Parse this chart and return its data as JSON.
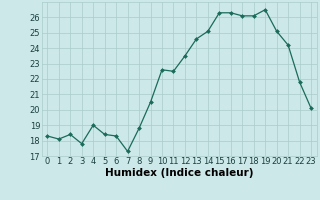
{
  "x": [
    0,
    1,
    2,
    3,
    4,
    5,
    6,
    7,
    8,
    9,
    10,
    11,
    12,
    13,
    14,
    15,
    16,
    17,
    18,
    19,
    20,
    21,
    22,
    23
  ],
  "y": [
    18.3,
    18.1,
    18.4,
    17.8,
    19.0,
    18.4,
    18.3,
    17.3,
    18.8,
    20.5,
    22.6,
    22.5,
    23.5,
    24.6,
    25.1,
    26.3,
    26.3,
    26.1,
    26.1,
    26.5,
    25.1,
    24.2,
    21.8,
    20.1
  ],
  "title": "",
  "xlabel": "Humidex (Indice chaleur)",
  "ylabel": "",
  "line_color": "#1a6b5a",
  "marker": "D",
  "marker_size": 2.0,
  "bg_color": "#cce8e8",
  "grid_color": "#aacccc",
  "ylim": [
    17,
    27
  ],
  "xlim": [
    -0.5,
    23.5
  ],
  "yticks": [
    17,
    18,
    19,
    20,
    21,
    22,
    23,
    24,
    25,
    26
  ],
  "xticks": [
    0,
    1,
    2,
    3,
    4,
    5,
    6,
    7,
    8,
    9,
    10,
    11,
    12,
    13,
    14,
    15,
    16,
    17,
    18,
    19,
    20,
    21,
    22,
    23
  ],
  "tick_fontsize": 6.0,
  "xlabel_fontsize": 7.5
}
